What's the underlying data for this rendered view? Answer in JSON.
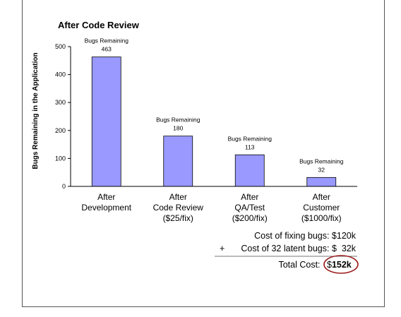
{
  "chart_data": {
    "type": "bar",
    "title": "After Code Review",
    "ylabel": "Bugs Remaining in the Application",
    "xlabel": "",
    "ylim": [
      0,
      500
    ],
    "yticks": [
      "0",
      "100",
      "200",
      "300",
      "400",
      "500"
    ],
    "ytick_values": [
      0,
      100,
      200,
      300,
      400,
      500
    ],
    "categories": [
      {
        "lines": [
          "After",
          "Development"
        ]
      },
      {
        "lines": [
          "After",
          "Code Review",
          "($25/fix)"
        ]
      },
      {
        "lines": [
          "After",
          "QA/Test",
          "($200/fix)"
        ]
      },
      {
        "lines": [
          "After",
          "Customer",
          "($1000/fix)"
        ]
      }
    ],
    "values": [
      463,
      180,
      113,
      32
    ],
    "data_label_prefix": "Bugs Remaining",
    "data_labels": [
      "463",
      "180",
      "113",
      "32"
    ],
    "bar_color": "#9999ff",
    "grid": false,
    "legend": "none"
  },
  "summary": {
    "line1": "Cost of fixing bugs: $120k",
    "line2_sign": "+",
    "line2": "Cost of 32 latent bugs: $  32k",
    "total_label": "Total Cost: ",
    "total_value_prefix": "$",
    "total_value": "152k",
    "circle_color": "#9b1b1b"
  }
}
